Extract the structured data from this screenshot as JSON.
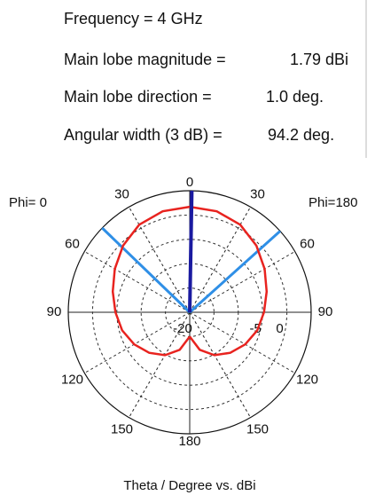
{
  "info": [
    {
      "label": "Frequency = 4 GHz"
    },
    {
      "label": "Main lobe magnitude =",
      "value": "1.79 dBi"
    },
    {
      "label": "Main lobe direction =",
      "value": "1.0 deg."
    },
    {
      "label": "Angular width (3 dB) =",
      "value": "94.2 deg."
    }
  ],
  "chart_data": {
    "type": "polar",
    "xlabel": "Theta / Degree vs. dBi",
    "theta": [
      0,
      15,
      30,
      45,
      60,
      75,
      90,
      105,
      120,
      135,
      150,
      165,
      180
    ],
    "series": [
      {
        "name": "Phi= 0",
        "side": "left",
        "color": "#e8231f",
        "values": [
          1.7,
          1.5,
          0.8,
          -0.6,
          -2.2,
          -3.6,
          -4.7,
          -5.6,
          -6.8,
          -8.2,
          -9.8,
          -12,
          -15
        ]
      },
      {
        "name": "Phi=180",
        "side": "right",
        "color": "#e8231f",
        "values": [
          1.7,
          1.5,
          0.8,
          -0.6,
          -2.2,
          -3.6,
          -4.7,
          -5.6,
          -6.8,
          -8.2,
          -9.8,
          -12,
          -15
        ]
      }
    ],
    "rlim": [
      -20,
      5
    ],
    "rticks": [
      -20,
      -5,
      0
    ],
    "rgrid": [
      -15,
      -10,
      -5,
      0
    ],
    "thetaticks": [
      0,
      30,
      60,
      90,
      120,
      150,
      180
    ],
    "main_lobe_direction": 1.0,
    "beam_edges": [
      -46.1,
      48.1
    ],
    "direction_color": "#1a1aa0",
    "edge_color": "#2f8fe6"
  }
}
